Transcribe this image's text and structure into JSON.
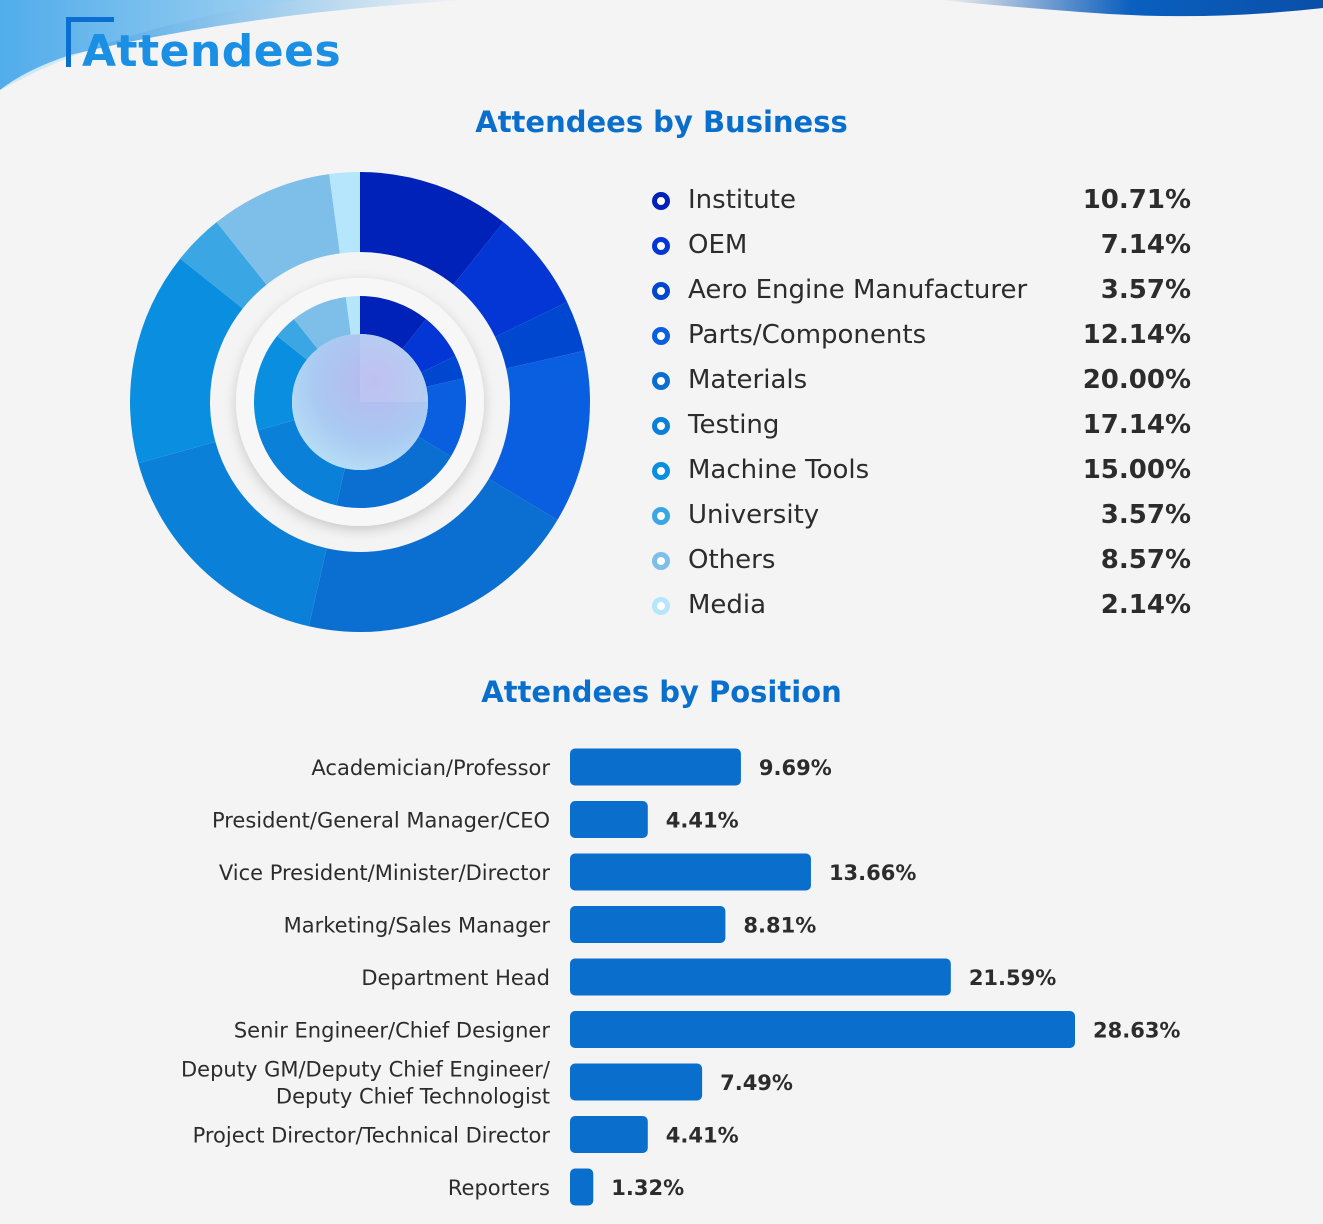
{
  "page": {
    "title": "Attendees"
  },
  "colors": {
    "title": "#1a8fe3",
    "section_title": "#0a6fcc",
    "bar": "#0a6fcc",
    "text": "#2c2c2c",
    "business_slices": [
      "#0022b8",
      "#0336d4",
      "#0047cf",
      "#0a5ee0",
      "#0a6fd0",
      "#0a80d8",
      "#0a8fe0",
      "#3aa6e4",
      "#7dbfe9",
      "#b5e6fb"
    ]
  },
  "chart_data": [
    {
      "type": "pie",
      "title": "Attendees by Business",
      "categories": [
        "Institute",
        "OEM",
        "Aero Engine Manufacturer",
        "Parts/Components",
        "Materials",
        "Testing",
        "Machine Tools",
        "University",
        "Others",
        "Media"
      ],
      "values": [
        10.71,
        7.14,
        3.57,
        12.14,
        20.0,
        17.14,
        15.0,
        3.57,
        8.57,
        2.14
      ],
      "value_labels": [
        "10.71%",
        "7.14%",
        "3.57%",
        "12.14%",
        "20.00%",
        "17.14%",
        "15.00%",
        "3.57%",
        "8.57%",
        "2.14%"
      ],
      "legend": "right"
    },
    {
      "type": "bar",
      "orientation": "horizontal",
      "title": "Attendees by Position",
      "categories": [
        [
          "Academician/Professor"
        ],
        [
          "President/General Manager/CEO"
        ],
        [
          "Vice President/Minister/Director"
        ],
        [
          "Marketing/Sales Manager"
        ],
        [
          "Department Head"
        ],
        [
          "Senir Engineer/Chief Designer"
        ],
        [
          "Deputy GM/Deputy Chief Engineer/",
          "Deputy Chief Technologist"
        ],
        [
          "Project Director/Technical Director"
        ],
        [
          "Reporters"
        ]
      ],
      "values": [
        9.69,
        4.41,
        13.66,
        8.81,
        21.59,
        28.63,
        7.49,
        4.41,
        1.32
      ],
      "value_labels": [
        "9.69%",
        "4.41%",
        "13.66%",
        "8.81%",
        "21.59%",
        "28.63%",
        "7.49%",
        "4.41%",
        "1.32%"
      ]
    }
  ]
}
